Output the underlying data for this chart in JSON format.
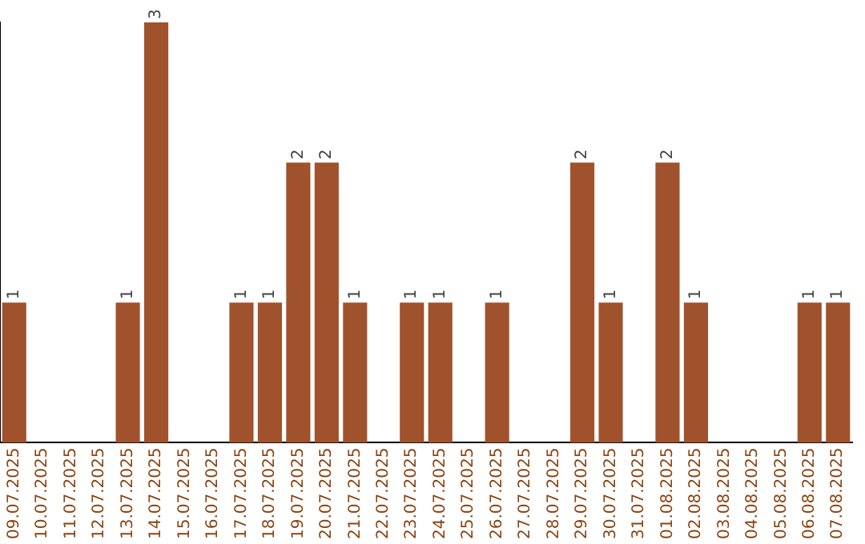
{
  "chart_data": {
    "type": "bar",
    "categories": [
      "09.07.2025",
      "10.07.2025",
      "11.07.2025",
      "12.07.2025",
      "13.07.2025",
      "14.07.2025",
      "15.07.2025",
      "16.07.2025",
      "17.07.2025",
      "18.07.2025",
      "19.07.2025",
      "20.07.2025",
      "21.07.2025",
      "22.07.2025",
      "23.07.2025",
      "24.07.2025",
      "25.07.2025",
      "26.07.2025",
      "27.07.2025",
      "28.07.2025",
      "29.07.2025",
      "30.07.2025",
      "31.07.2025",
      "01.08.2025",
      "02.08.2025",
      "03.08.2025",
      "04.08.2025",
      "05.08.2025",
      "06.08.2025",
      "07.08.2025"
    ],
    "values": [
      1,
      0,
      0,
      0,
      1,
      3,
      0,
      0,
      1,
      1,
      2,
      2,
      1,
      0,
      1,
      1,
      0,
      1,
      0,
      0,
      2,
      1,
      0,
      2,
      1,
      0,
      0,
      0,
      1,
      1
    ],
    "value_labels": [
      "1",
      null,
      null,
      null,
      "1",
      "3",
      null,
      null,
      "1",
      "1",
      "2",
      "2",
      "1",
      null,
      "1",
      "1",
      null,
      "1",
      null,
      null,
      "2",
      "1",
      null,
      "2",
      "1",
      null,
      null,
      null,
      "1",
      "1"
    ],
    "color": "#a0522d",
    "tick_labels": "x",
    "grid": false,
    "legend": false
  }
}
